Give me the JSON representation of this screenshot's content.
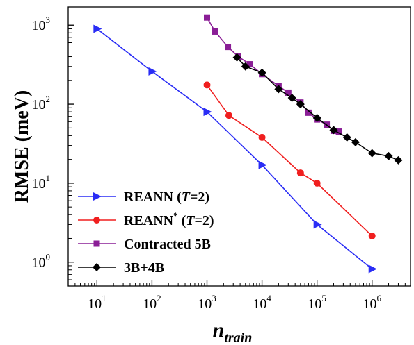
{
  "chart_data": {
    "type": "line",
    "xlabel": "n",
    "xlabel_sub": "train",
    "ylabel": "RMSE (meV)",
    "xscale": "log",
    "yscale": "log",
    "xlim": [
      3,
      5000000
    ],
    "ylim": [
      0.5,
      1700
    ],
    "x_ticks": [
      {
        "base": "10",
        "exp": "1"
      },
      {
        "base": "10",
        "exp": "2"
      },
      {
        "base": "10",
        "exp": "3"
      },
      {
        "base": "10",
        "exp": "4"
      },
      {
        "base": "10",
        "exp": "5"
      },
      {
        "base": "10",
        "exp": "6"
      }
    ],
    "y_ticks": [
      {
        "base": "10",
        "exp": "0"
      },
      {
        "base": "10",
        "exp": "1"
      },
      {
        "base": "10",
        "exp": "2"
      },
      {
        "base": "10",
        "exp": "3"
      }
    ],
    "legend_position": "bottom-left",
    "series": [
      {
        "name": "REANN (T=2)",
        "name_parts": [
          "REANN (",
          "T",
          "=2)"
        ],
        "color": "#2a2df5",
        "marker": "triangle-right",
        "x": [
          10,
          100,
          1000,
          10000,
          100000,
          1000000
        ],
        "y": [
          900,
          260,
          80,
          17,
          3,
          0.82
        ]
      },
      {
        "name": "REANN* (T=2)",
        "name_parts": [
          "REANN",
          "*",
          " (",
          "T",
          "=2)"
        ],
        "color": "#f01f1f",
        "marker": "circle",
        "x": [
          1000,
          2500,
          10000,
          50000,
          100000,
          1000000
        ],
        "y": [
          175,
          72,
          38,
          13.5,
          10,
          2.15
        ]
      },
      {
        "name": "Contracted 5B",
        "color": "#8a1e96",
        "marker": "square",
        "x": [
          1000,
          1400,
          2400,
          3700,
          6000,
          10000,
          20000,
          30000,
          50000,
          70000,
          100000,
          150000,
          200000,
          250000
        ],
        "y": [
          1250,
          830,
          530,
          400,
          320,
          240,
          170,
          140,
          105,
          78,
          64,
          55,
          46,
          45
        ]
      },
      {
        "name": "3B+4B",
        "color": "#000000",
        "marker": "diamond",
        "x": [
          3500,
          5000,
          10000,
          20000,
          35000,
          50000,
          100000,
          200000,
          350000,
          500000,
          1000000,
          2000000,
          3000000
        ],
        "y": [
          390,
          300,
          250,
          155,
          120,
          100,
          67,
          47,
          38,
          33,
          24,
          22,
          19.5
        ]
      }
    ]
  }
}
